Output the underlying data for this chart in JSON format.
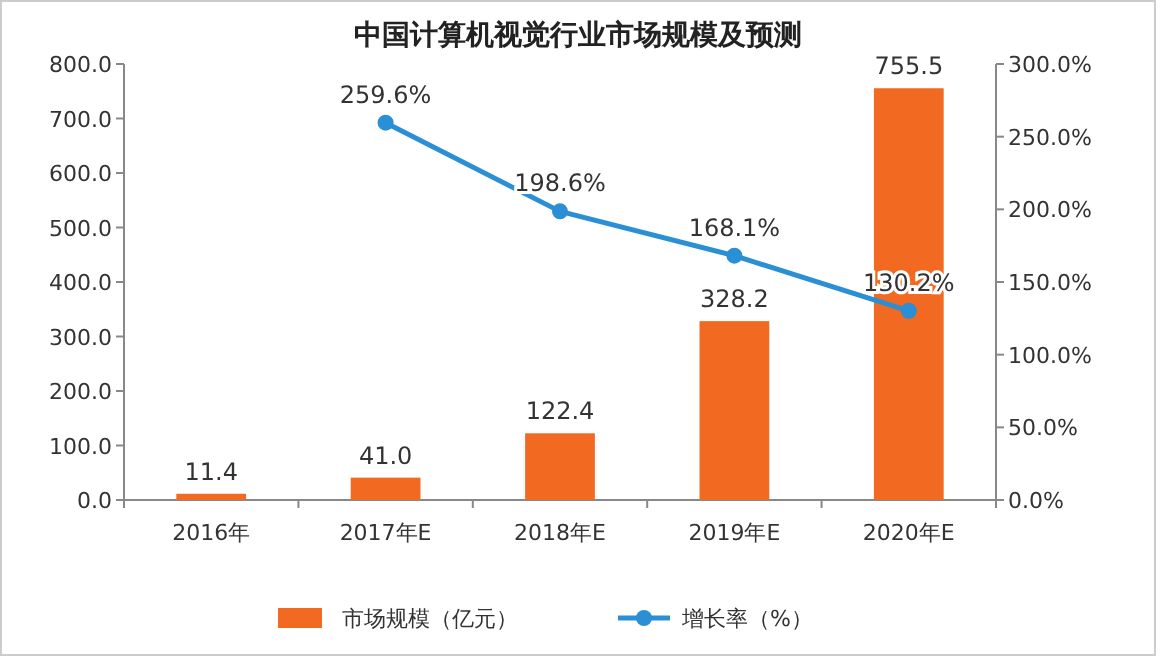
{
  "chart_data": {
    "type": "bar",
    "title": "中国计算机视觉行业市场规模及预测",
    "categories": [
      "2016年",
      "2017年E",
      "2018年E",
      "2019年E",
      "2020年E"
    ],
    "series": [
      {
        "name": "市场规模（亿元）",
        "color": "#f26a21",
        "values": [
          11.4,
          41.0,
          122.4,
          328.2,
          755.5
        ],
        "value_labels": [
          "11.4",
          "41.0",
          "122.4",
          "328.2",
          "755.5"
        ]
      },
      {
        "name": "增长率（%）",
        "type": "line",
        "axis": "y2",
        "color": "#2a8fd4",
        "marker": "circle",
        "values": [
          null,
          259.6,
          198.6,
          168.1,
          130.2
        ],
        "value_labels": [
          null,
          "259.6%",
          "198.6%",
          "168.1%",
          "130.2%"
        ]
      }
    ],
    "ylim": [
      0,
      800
    ],
    "yticks": [
      {
        "value": 0,
        "label": "0.0"
      },
      {
        "value": 100,
        "label": "100.0"
      },
      {
        "value": 200,
        "label": "200.0"
      },
      {
        "value": 300,
        "label": "300.0"
      },
      {
        "value": 400,
        "label": "400.0"
      },
      {
        "value": 500,
        "label": "500.0"
      },
      {
        "value": 600,
        "label": "600.0"
      },
      {
        "value": 700,
        "label": "700.0"
      },
      {
        "value": 800,
        "label": "800.0"
      }
    ],
    "y2lim": [
      0,
      300
    ],
    "y2ticks": [
      {
        "value": 0,
        "label": "0.0%"
      },
      {
        "value": 50,
        "label": "50.0%"
      },
      {
        "value": 100,
        "label": "100.0%"
      },
      {
        "value": 150,
        "label": "150.0%"
      },
      {
        "value": 200,
        "label": "200.0%"
      },
      {
        "value": 250,
        "label": "250.0%"
      },
      {
        "value": 300,
        "label": "300.0%"
      }
    ],
    "legend": "bottom",
    "grid": false
  }
}
